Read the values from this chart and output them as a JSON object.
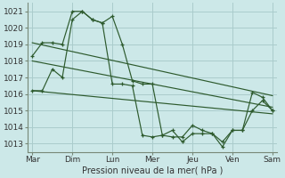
{
  "bg_color": "#cce8e8",
  "grid_color": "#aacccc",
  "line_color": "#2d5a2d",
  "xlabel_text": "Pression niveau de la mer( hPa )",
  "x_labels": [
    "Mar",
    "Dim",
    "Lun",
    "Mer",
    "Jeu",
    "Ven",
    "Sam"
  ],
  "x_ticks": [
    0,
    24,
    48,
    72,
    96,
    120,
    144
  ],
  "ylim": [
    1012.5,
    1021.5
  ],
  "yticks": [
    1013,
    1014,
    1015,
    1016,
    1017,
    1018,
    1019,
    1020,
    1021
  ],
  "series_upper": {
    "x": [
      0,
      6,
      12,
      18,
      24,
      30,
      36,
      42,
      48,
      54,
      60,
      66,
      72,
      78,
      84,
      90,
      96,
      102,
      108,
      114,
      120,
      126,
      132,
      138,
      144
    ],
    "y": [
      1018.3,
      1019.1,
      1019.1,
      1019.0,
      1021.0,
      1021.0,
      1020.5,
      1020.3,
      1020.7,
      1019.0,
      1016.8,
      1016.6,
      1016.6,
      1013.5,
      1013.4,
      1013.4,
      1014.1,
      1013.8,
      1013.6,
      1013.1,
      1013.8,
      1013.8,
      1016.1,
      1015.8,
      1015.0
    ]
  },
  "series_lower": {
    "x": [
      0,
      6,
      12,
      18,
      24,
      30,
      36,
      42,
      48,
      54,
      60,
      66,
      72,
      78,
      84,
      90,
      96,
      102,
      108,
      114,
      120,
      126,
      132,
      138,
      144
    ],
    "y": [
      1016.2,
      1016.2,
      1017.5,
      1017.0,
      1020.5,
      1021.0,
      1020.5,
      1020.3,
      1016.6,
      1016.6,
      1016.5,
      1013.5,
      1013.4,
      1013.5,
      1013.8,
      1013.1,
      1013.6,
      1013.6,
      1013.6,
      1012.8,
      1013.8,
      1013.8,
      1015.0,
      1015.6,
      1015.0
    ]
  },
  "trend1": {
    "x": [
      0,
      144
    ],
    "y": [
      1019.1,
      1015.9
    ]
  },
  "trend2": {
    "x": [
      0,
      144
    ],
    "y": [
      1018.0,
      1015.2
    ]
  },
  "trend3": {
    "x": [
      0,
      144
    ],
    "y": [
      1016.2,
      1014.8
    ]
  }
}
